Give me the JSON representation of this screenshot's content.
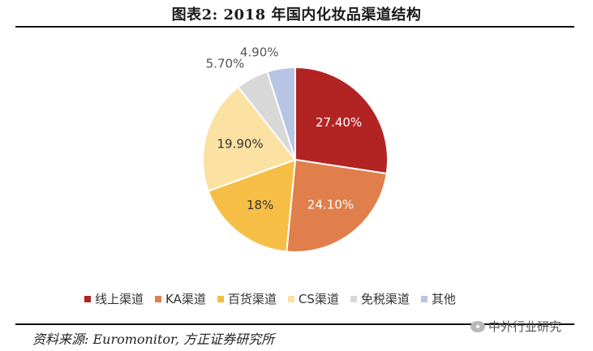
{
  "title": "图表2:  2018 年国内化妆品渠道结构",
  "source": "资料来源: Euromonitor, 方正证券研究所",
  "watermark": "中外行业研究",
  "chart_data": {
    "type": "pie",
    "title": "图表2:  2018 年国内化妆品渠道结构",
    "slices": [
      {
        "name": "线上渠道",
        "value": 27.4,
        "label": "27.40%",
        "color": "#b22423"
      },
      {
        "name": "KA渠道",
        "value": 24.1,
        "label": "24.10%",
        "color": "#e07f4b"
      },
      {
        "name": "百货渠道",
        "value": 18.0,
        "label": "18%",
        "color": "#f7be45"
      },
      {
        "name": "CS渠道",
        "value": 19.9,
        "label": "19.90%",
        "color": "#fbe1a2"
      },
      {
        "name": "免税渠道",
        "value": 5.7,
        "label": "5.70%",
        "color": "#d8d8d8"
      },
      {
        "name": "其他",
        "value": 4.9,
        "label": "4.90%",
        "color": "#b8c4e3"
      }
    ],
    "legend_position": "bottom"
  }
}
